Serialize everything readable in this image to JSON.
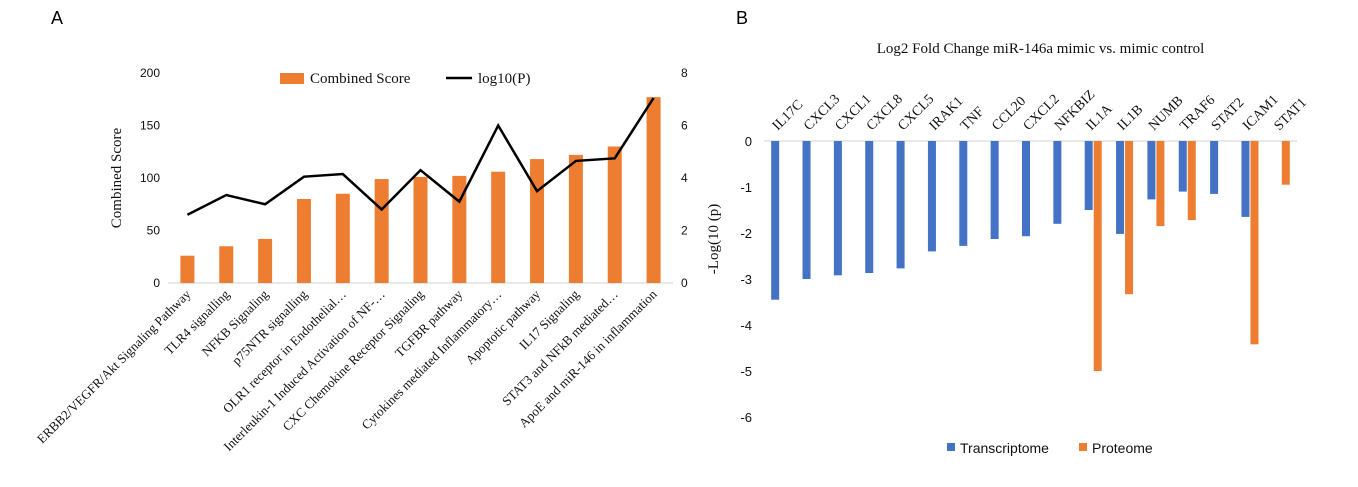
{
  "panels": {
    "a_letter": "A",
    "b_letter": "B"
  },
  "chart_data": [
    {
      "type": "bar",
      "panel": "A",
      "title": "",
      "categories": [
        "ERBB2/VEGFR/Akt Signaling Pathway",
        "TLR4 signalling",
        "NFKB Signaling",
        "p75NTR signalling",
        "OLR1 receptor in  Endothelial…",
        "Interleukin-1 Induced Activation of NF-…",
        "CXC Chemokine Receptor Signaling",
        "TGFBR pathway",
        "Cytokines mediated Inflammatory…",
        "Apoptotic pathway",
        "IL17 Signaling",
        "STAT3 and NFkB mediated…",
        "ApoE and miR-146 in inflammation"
      ],
      "series": [
        {
          "name": "Combined Score",
          "type": "bar",
          "axis": "left",
          "color": "#ED7D31",
          "values": [
            26,
            35,
            42,
            80,
            85,
            99,
            101,
            102,
            106,
            118,
            122,
            130,
            177
          ]
        },
        {
          "name": "log10(P)",
          "type": "line",
          "axis": "right",
          "color": "#000000",
          "values": [
            2.6,
            3.35,
            3.0,
            4.05,
            4.15,
            2.8,
            4.3,
            3.1,
            6.0,
            3.5,
            4.65,
            4.75,
            7.05
          ]
        }
      ],
      "ylabel": "Combined Score",
      "ylim": [
        0,
        200
      ],
      "yticks": [
        "0",
        "50",
        "100",
        "150",
        "200"
      ],
      "y2label": "",
      "y2lim": [
        0,
        8
      ],
      "y2ticks": [
        "0",
        "2",
        "4",
        "6",
        "8"
      ],
      "legend": "top",
      "grid": false
    },
    {
      "type": "bar",
      "panel": "B",
      "title": "Log2 Fold Change miR-146a mimic vs. mimic control",
      "categories": [
        "IL17C",
        "CXCL3",
        "CXCL1",
        "CXCL8",
        "CXCL5",
        "IRAK1",
        "TNF",
        "CCL20",
        "CXCL2",
        "NFKBIZ",
        "IL1A",
        "IL1B",
        "NUMB",
        "TRAF6",
        "STAT2",
        "ICAM1",
        "STAT1"
      ],
      "series": [
        {
          "name": "Transcriptome",
          "color": "#4472C4",
          "values": [
            -3.45,
            -3.0,
            -2.92,
            -2.87,
            -2.77,
            -2.4,
            -2.28,
            -2.13,
            -2.07,
            -1.8,
            -1.5,
            -2.02,
            -1.27,
            -1.1,
            -1.15,
            -1.65,
            null
          ]
        },
        {
          "name": "Proteome",
          "color": "#ED7D31",
          "values": [
            null,
            null,
            null,
            null,
            null,
            null,
            null,
            null,
            null,
            null,
            -5.0,
            -3.33,
            -1.85,
            -1.72,
            null,
            -4.42,
            -0.95
          ]
        }
      ],
      "ylabel": "-Log(10 (p)",
      "ylim": [
        -6,
        0
      ],
      "yticks": [
        "0",
        "-1",
        "-2",
        "-3",
        "-4",
        "-5",
        "-6"
      ],
      "legend": "bottom",
      "grid": false
    }
  ]
}
